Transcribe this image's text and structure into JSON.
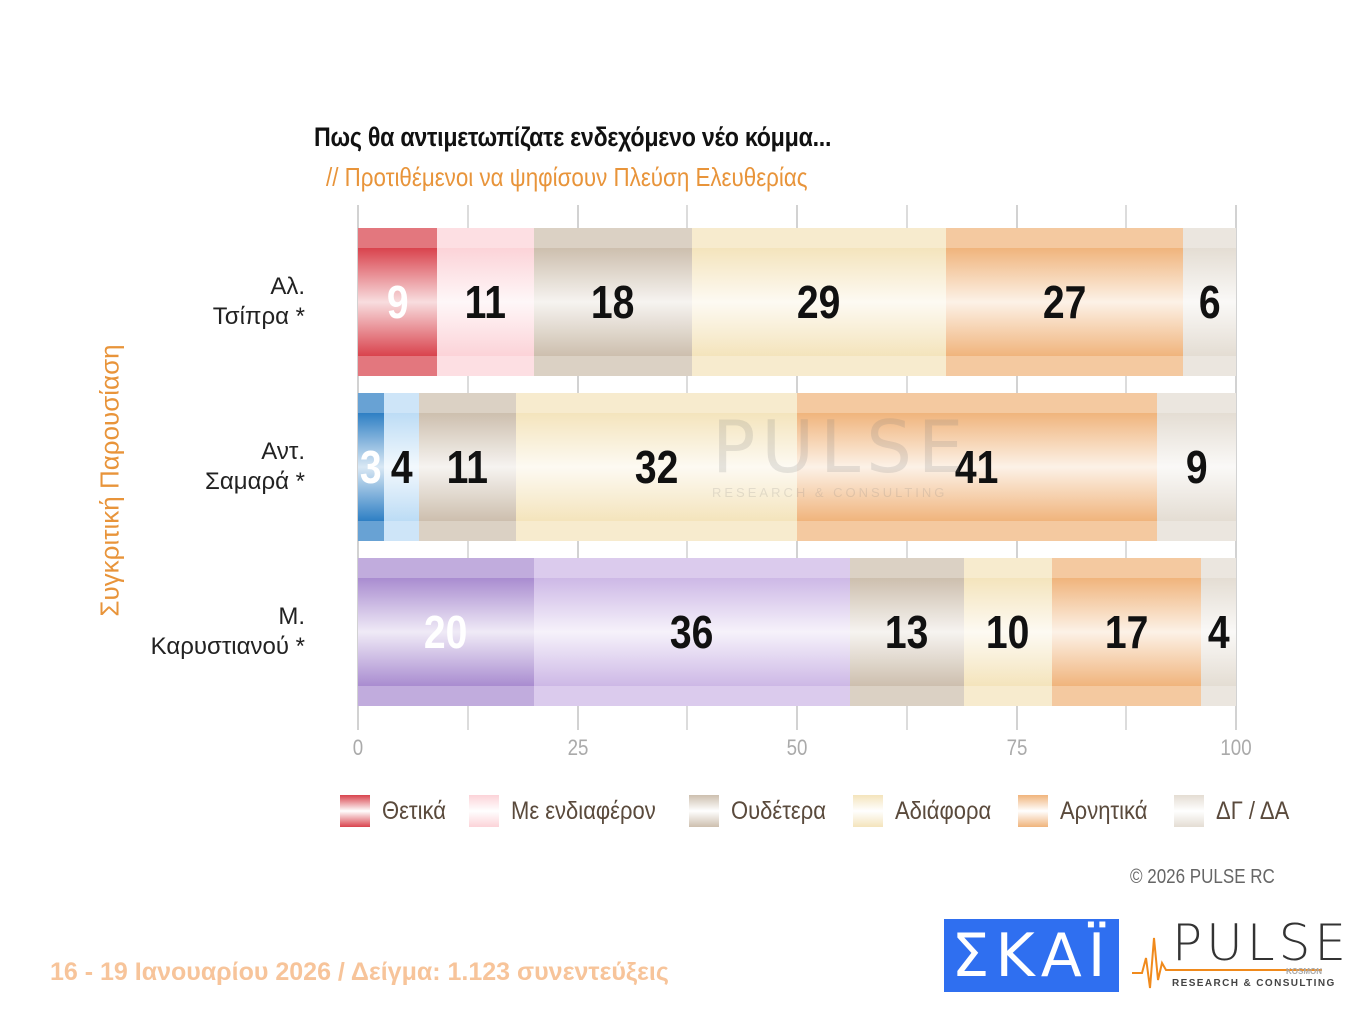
{
  "header": {
    "title": "Πως θα αντιμετωπίζατε ενδεχόμενο νέο κόμμα...",
    "subtitle": "// Προτιθέμενοι να ψηφίσουν Πλεύση Ελευθερίας"
  },
  "side_label": "Συγκριτική Παρουσίαση",
  "rows": [
    {
      "label_line1": "Αλ.",
      "label_line2": "Τσίπρα *"
    },
    {
      "label_line1": "Αντ.",
      "label_line2": "Σαμαρά *"
    },
    {
      "label_line1": "Μ.",
      "label_line2": "Καρυστιανού *"
    }
  ],
  "x_ticks": [
    "0",
    "25",
    "50",
    "75",
    "100"
  ],
  "legend": [
    {
      "label": "Θετικά",
      "color": "#d9434d"
    },
    {
      "label": "Με ενδιαφέρον",
      "color": "#fcd3d8"
    },
    {
      "label": "Ουδέτερα",
      "color": "#cdbfae"
    },
    {
      "label": "Αδιάφορα",
      "color": "#f4e4bc"
    },
    {
      "label": "Αρνητικά",
      "color": "#f0b47c"
    },
    {
      "label": "ΔΓ / ΔΑ",
      "color": "#e4ddd3"
    }
  ],
  "copyright": "© 2026 PULSE RC",
  "footer": "16 - 19 Ιανουαρίου 2026  /  Δείγμα:  1.123 συνεντεύξεις",
  "logos": {
    "skai": "ΣΚΑΪ",
    "pulse": "PULSE",
    "pulse_kosmon": "KOSMON",
    "pulse_sub": "RESEARCH & CONSULTING"
  },
  "watermark": {
    "word": "PULSE",
    "sub": "RESEARCH & CONSULTING"
  },
  "chart_data": {
    "type": "bar",
    "orientation": "horizontal",
    "stacked": true,
    "title": "Πως θα αντιμετωπίζατε ενδεχόμενο νέο κόμμα...",
    "subtitle": "// Προτιθέμενοι να ψηφίσουν Πλεύση Ελευθερίας",
    "ylabel": "Συγκριτική Παρουσίαση",
    "xlabel": "",
    "xlim": [
      0,
      100
    ],
    "grid": true,
    "legend_position": "bottom",
    "categories": [
      "Αλ. Τσίπρα *",
      "Αντ. Σαμαρά *",
      "Μ. Καρυστιανού *"
    ],
    "series": [
      {
        "name": "Θετικά",
        "values": [
          9,
          3,
          20
        ]
      },
      {
        "name": "Με ενδιαφέρον",
        "values": [
          11,
          4,
          36
        ]
      },
      {
        "name": "Ουδέτερα",
        "values": [
          18,
          11,
          13
        ]
      },
      {
        "name": "Αδιάφορα",
        "values": [
          29,
          32,
          10
        ]
      },
      {
        "name": "Αρνητικά",
        "values": [
          27,
          41,
          17
        ]
      },
      {
        "name": "ΔΓ / ΔΑ",
        "values": [
          6,
          9,
          4
        ]
      }
    ],
    "row_palettes": [
      [
        "#d9434d",
        "#fcd3d8",
        "#cdbfae",
        "#f4e4bc",
        "#f0b47c",
        "#e4ddd3"
      ],
      [
        "#2e7fc4",
        "#bcdcf5",
        "#cdbfae",
        "#f4e4bc",
        "#f0b47c",
        "#e4ddd3"
      ],
      [
        "#a98cd0",
        "#cdb8e6",
        "#cdbfae",
        "#f4e4bc",
        "#f0b47c",
        "#e4ddd3"
      ]
    ],
    "white_labels": [
      [
        true,
        false,
        false,
        false,
        false,
        false
      ],
      [
        true,
        false,
        false,
        false,
        false,
        false
      ],
      [
        true,
        false,
        false,
        false,
        false,
        false
      ]
    ]
  }
}
